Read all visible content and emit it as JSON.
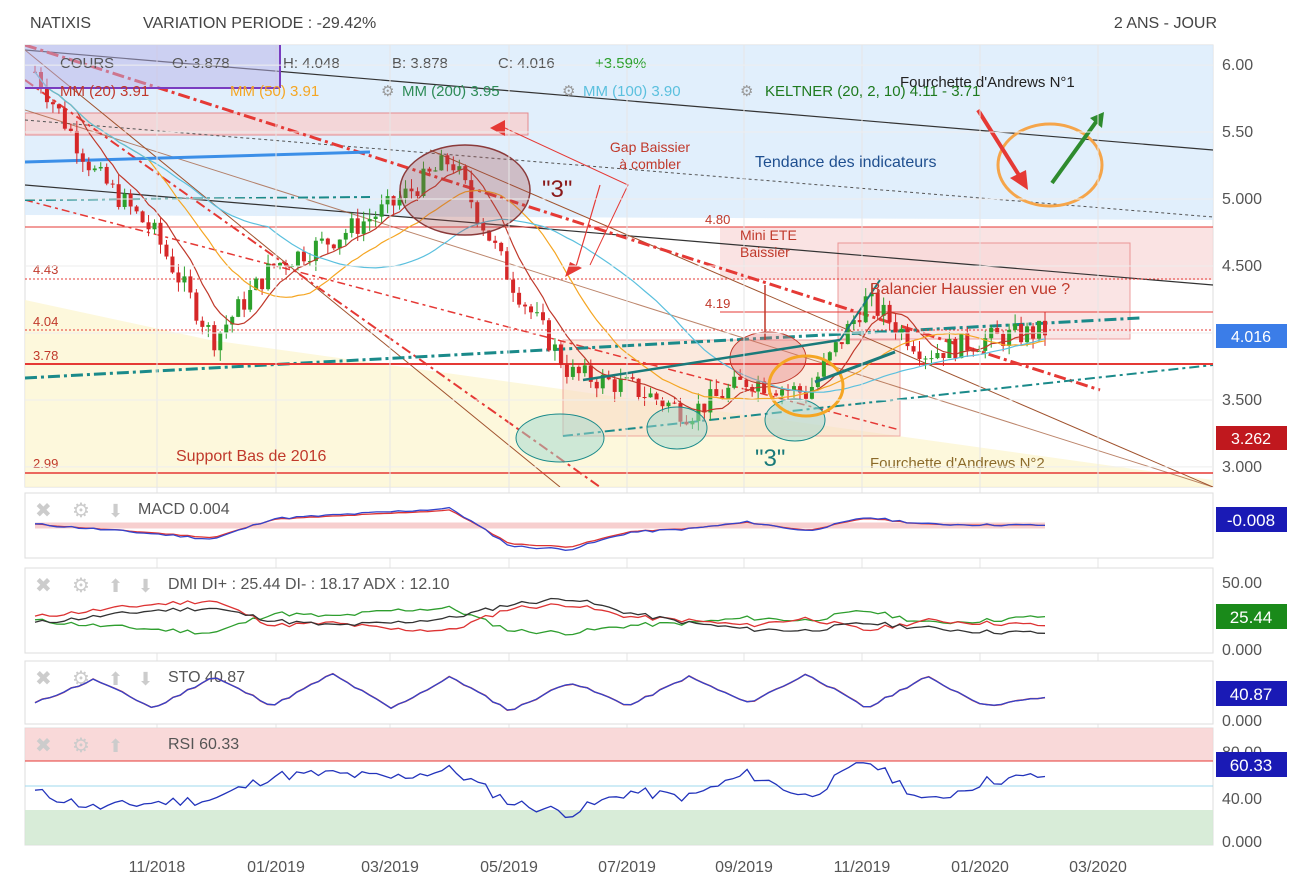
{
  "header": {
    "symbol": "NATIXIS",
    "variation": "VARIATION PERIODE : -29.42%",
    "range": "2 ANS - JOUR"
  },
  "legend": {
    "cours": "COURS",
    "open": "O: 3.878",
    "high": "H: 4.048",
    "low": "B: 3.878",
    "close": "C: 4.016",
    "change": "+3.59%",
    "mm20": "MM (20) 3.91",
    "mm50": "MM (50) 3.91",
    "mm200": "MM (200) 3.95",
    "mm100": "MM (100) 3.90",
    "keltner": "KELTNER (20, 2, 10) 4.11 - 3.71"
  },
  "colors": {
    "up": "#2ca02c",
    "down": "#d62728",
    "mm20": "#c0392b",
    "mm50": "#f5a623",
    "mm200": "#2e8b57",
    "mm100": "#5bc0de",
    "keltner": "#8bc34a",
    "macd": "#3344cc",
    "signal": "#d33",
    "di_plus": "#2e9e2e",
    "di_minus": "#d33",
    "adx": "#333333",
    "sto_k": "#3344cc",
    "sto_d": "#cc3333",
    "rsi": "#2233bb"
  },
  "annotations": {
    "gap": "Gap Baissier\nà combler",
    "three_top": "\"3\"",
    "three_bottom": "\"3\"",
    "tendance": "Tendance des indicateurs",
    "andrews1": "Fourchette d'Andrews N°1",
    "andrews2": "Fourchette d'Andrews N°2",
    "mini_ete": "Mini ETE\nBaissier",
    "balancier": "Balancier Haussier en vue ?",
    "support": "Support Bas de 2016",
    "lvl_480": "4.80",
    "lvl_443": "4.43",
    "lvl_419": "4.19",
    "lvl_404": "4.04",
    "lvl_378": "3.78",
    "lvl_299": "2.99"
  },
  "badges": {
    "price": "4.016",
    "low_price": "3.262",
    "macd": "-0.008",
    "dmi": "25.44",
    "sto": "40.87",
    "rsi": "60.33"
  },
  "panels": {
    "macd": "MACD 0.004",
    "dmi": "DMI DI+ : 25.44 DI- : 18.17 ADX : 12.10",
    "sto": "STO 40.87",
    "rsi": "RSI 60.33"
  },
  "chart_data": [
    {
      "type": "candlestick",
      "title": "NATIXIS",
      "x_ticks": [
        "11/2018",
        "01/2019",
        "03/2019",
        "05/2019",
        "07/2019",
        "09/2019",
        "11/2019",
        "01/2020",
        "03/2020"
      ],
      "y_ticks": [
        "6.00",
        "5.50",
        "5.000",
        "4.500",
        "4.000",
        "3.500",
        "3.000"
      ],
      "ylim": [
        2.85,
        6.15
      ],
      "points": [
        {
          "date": "2018-09",
          "close": 5.95
        },
        {
          "date": "2018-10",
          "close": 5.2
        },
        {
          "date": "2018-11",
          "close": 4.75
        },
        {
          "date": "2018-12",
          "close": 3.95
        },
        {
          "date": "2019-01",
          "close": 4.5
        },
        {
          "date": "2019-02",
          "close": 4.7
        },
        {
          "date": "2019-03",
          "close": 4.95
        },
        {
          "date": "2019-04",
          "close": 5.3
        },
        {
          "date": "2019-05",
          "close": 4.4
        },
        {
          "date": "2019-06",
          "close": 3.7
        },
        {
          "date": "2019-07",
          "close": 3.6
        },
        {
          "date": "2019-08",
          "close": 3.4
        },
        {
          "date": "2019-09",
          "close": 3.65
        },
        {
          "date": "2019-10",
          "close": 3.55
        },
        {
          "date": "2019-11",
          "close": 4.25
        },
        {
          "date": "2019-12",
          "close": 3.85
        },
        {
          "date": "2020-01",
          "close": 3.95
        },
        {
          "date": "2020-02",
          "close": 4.016
        }
      ]
    },
    {
      "type": "line",
      "name": "MACD",
      "y_ticks": [],
      "values": [
        0.02,
        -0.05,
        -0.12,
        -0.2,
        0.1,
        0.15,
        0.2,
        0.25,
        -0.3,
        -0.35,
        -0.1,
        -0.05,
        0.05,
        -0.08,
        0.12,
        0.02,
        0.01,
        0.004
      ]
    },
    {
      "type": "line",
      "name": "DMI",
      "y_ticks": [
        "50.00",
        "0.000"
      ],
      "series": [
        {
          "name": "DI+",
          "values": [
            22,
            18,
            15,
            12,
            28,
            25,
            30,
            32,
            14,
            12,
            18,
            20,
            24,
            22,
            30,
            20,
            22,
            25.44
          ]
        },
        {
          "name": "DI-",
          "values": [
            25,
            30,
            35,
            38,
            18,
            20,
            15,
            14,
            32,
            35,
            25,
            22,
            18,
            24,
            14,
            22,
            20,
            18.17
          ]
        },
        {
          "name": "ADX",
          "values": [
            20,
            25,
            30,
            32,
            22,
            18,
            20,
            24,
            35,
            40,
            28,
            20,
            15,
            14,
            20,
            16,
            13,
            12.1
          ]
        }
      ]
    },
    {
      "type": "line",
      "name": "STO",
      "y_ticks": [
        "0.000"
      ],
      "values": [
        30,
        75,
        20,
        80,
        25,
        85,
        20,
        80,
        15,
        70,
        25,
        80,
        30,
        85,
        20,
        80,
        25,
        40.87
      ]
    },
    {
      "type": "line",
      "name": "RSI",
      "y_ticks": [
        "80.00",
        "40.00",
        "0.000"
      ],
      "values": [
        45,
        30,
        35,
        38,
        60,
        62,
        58,
        66,
        35,
        25,
        45,
        40,
        62,
        40,
        75,
        35,
        55,
        60.33
      ]
    }
  ]
}
